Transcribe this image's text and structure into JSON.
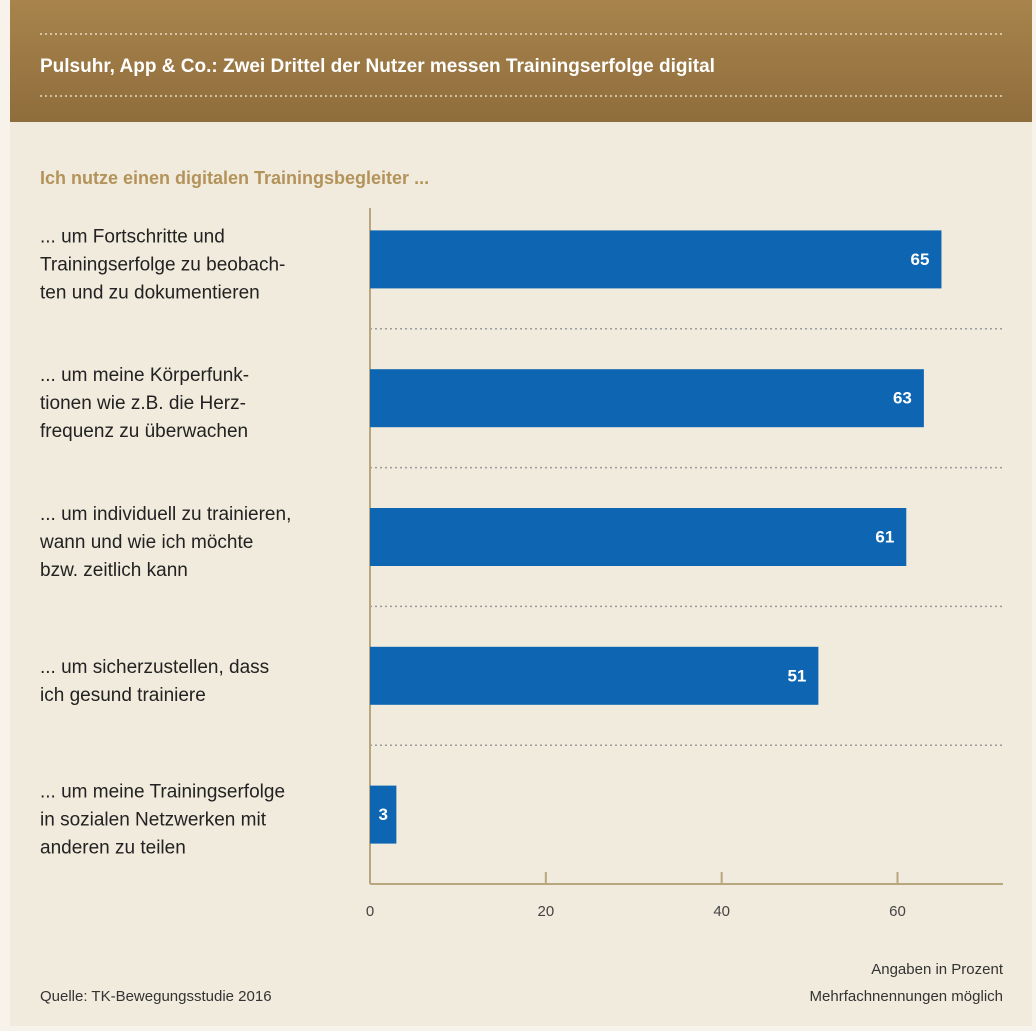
{
  "chart_data": {
    "type": "bar",
    "orientation": "horizontal",
    "title": "Pulsuhr, App & Co.: Zwei Drittel der Nutzer messen Trainingserfolge digital",
    "subtitle": "Ich nutze einen digitalen Trainingsbegleiter ...",
    "categories": [
      "... um Fortschritte und\nTrainingserfolge zu beobach-\nten und zu dokumentieren",
      "... um meine Körperfunk-\ntionen wie z.B. die Herz-\nfrequenz zu überwachen",
      "... um individuell zu trainieren,\nwann und wie ich möchte\nbzw. zeitlich kann",
      "... um sicherzustellen, dass\nich gesund trainiere",
      "... um meine Trainingserfolge\nin sozialen Netzwerken mit\nanderen zu teilen"
    ],
    "values": [
      65,
      63,
      61,
      51,
      3
    ],
    "color": "#0e66b2",
    "xlim": [
      0,
      72
    ],
    "xticks": [
      0,
      20,
      40,
      60
    ],
    "source": "Quelle: TK-Bewegungsstudie 2016",
    "notes": [
      "Angaben in Prozent",
      "Mehrfachnennungen möglich"
    ]
  }
}
